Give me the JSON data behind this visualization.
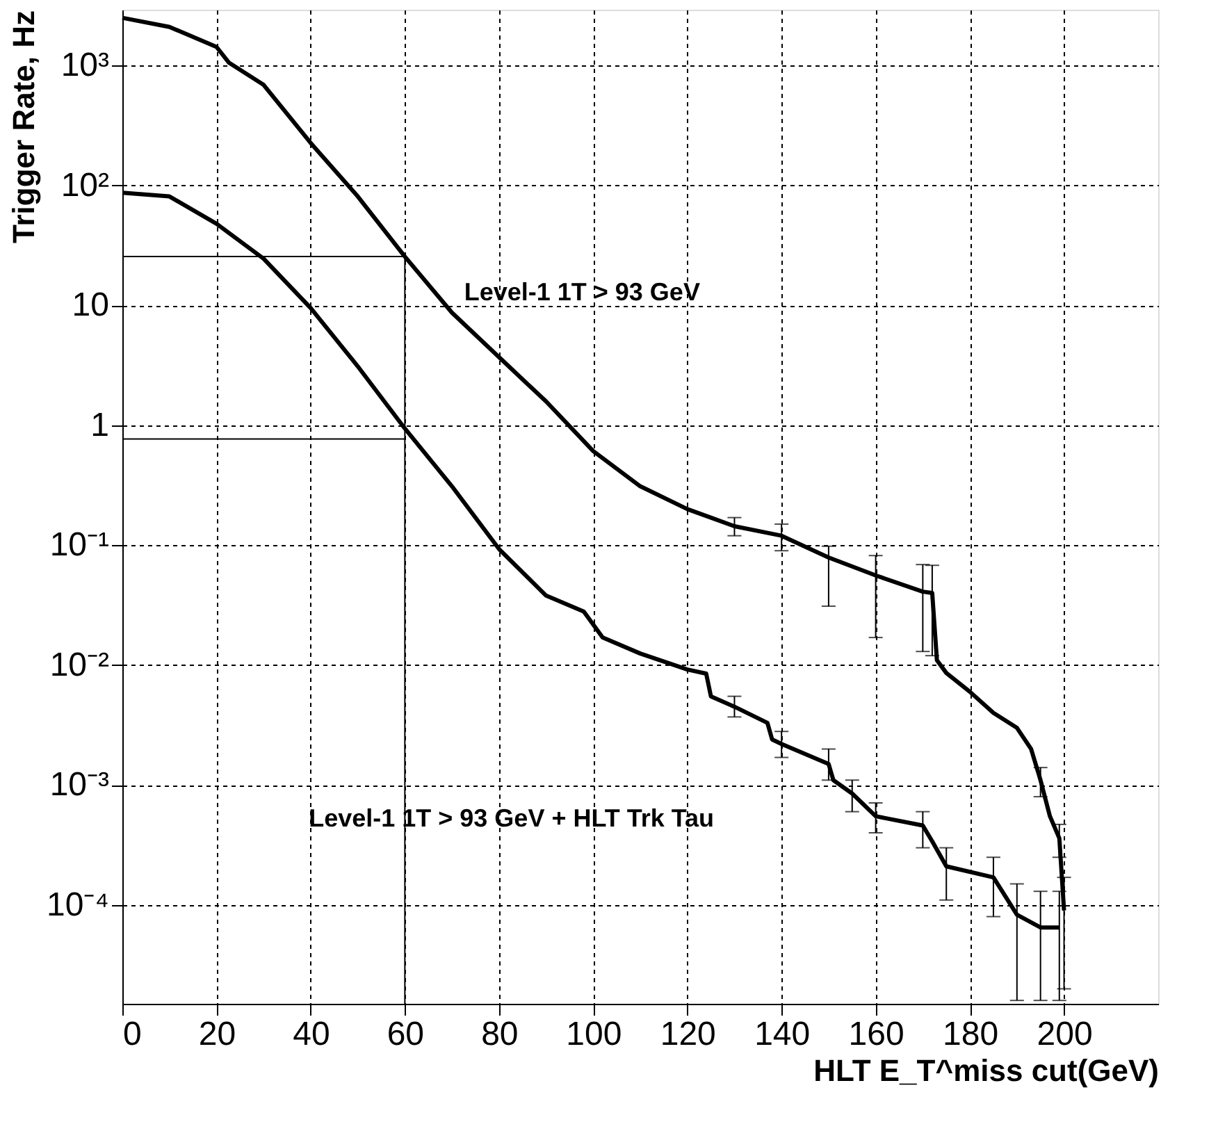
{
  "chart_data": {
    "type": "line",
    "xlabel": "HLT E_T^miss cut(GeV)",
    "ylabel": "Trigger Rate, Hz",
    "log": true,
    "grid": true,
    "marker": "none",
    "line_style": "solid",
    "xlim": [
      0,
      220
    ],
    "xticks": [
      0,
      20,
      40,
      60,
      80,
      100,
      120,
      140,
      160,
      180,
      200
    ],
    "ylim": [
      1.5e-05,
      2920
    ],
    "yticks": [
      {
        "value": 1000,
        "label": "10³"
      },
      {
        "value": 100,
        "label": "10²"
      },
      10,
      1,
      {
        "value": 0.1,
        "label": "10⁻¹"
      },
      {
        "value": 0.01,
        "label": "10⁻²"
      },
      {
        "value": 0.001,
        "label": "10⁻³"
      },
      {
        "value": 0.0001,
        "label": "10⁻⁴"
      }
    ],
    "series": [
      {
        "color": "#000000",
        "x": [
          0,
          10,
          20,
          22.6,
          30,
          40,
          50,
          60,
          70,
          80,
          90,
          100,
          110,
          120,
          130,
          140,
          150,
          160,
          170,
          172,
          173,
          175,
          180,
          185,
          190,
          193,
          195,
          197,
          199,
          200
        ],
        "values": [
          2500,
          2100,
          1430,
          1060,
          690,
          226,
          81,
          25.5,
          8.7,
          3.7,
          1.58,
          0.61,
          0.31,
          0.2,
          0.144,
          0.12,
          0.079,
          0.056,
          0.041,
          0.04,
          0.011,
          0.0086,
          0.006,
          0.004,
          0.003,
          0.002,
          0.0011,
          0.00055,
          0.00036,
          9e-05
        ],
        "errors": [
          null,
          null,
          null,
          null,
          null,
          null,
          null,
          null,
          null,
          null,
          null,
          null,
          null,
          null,
          [
            0.12,
            0.17
          ],
          [
            0.09,
            0.15
          ],
          [
            0.031,
            0.098
          ],
          [
            0.017,
            0.082
          ],
          [
            0.013,
            0.069
          ],
          [
            0.012,
            0.068
          ],
          null,
          null,
          null,
          null,
          null,
          null,
          [
            0.0008,
            0.0014
          ],
          null,
          [
            0.00025,
            0.00047
          ],
          [
            2e-05,
            0.00017
          ]
        ]
      },
      {
        "color": "#000000",
        "x": [
          0,
          10,
          20,
          30,
          40,
          50,
          60,
          70,
          80,
          90,
          98,
          102,
          110,
          120,
          124,
          125,
          130,
          137,
          138,
          140,
          150,
          151,
          155,
          160,
          170,
          172,
          175,
          185,
          190,
          195,
          199
        ],
        "values": [
          87,
          81,
          48,
          24.5,
          9.5,
          3.1,
          0.94,
          0.31,
          0.093,
          0.038,
          0.028,
          0.017,
          0.0125,
          0.0092,
          0.0085,
          0.0055,
          0.0045,
          0.0033,
          0.0024,
          0.0022,
          0.0015,
          0.0011,
          0.00085,
          0.00055,
          0.00046,
          0.00034,
          0.00021,
          0.00017,
          8.3e-05,
          6.5e-05,
          6.5e-05
        ],
        "errors": [
          null,
          null,
          null,
          null,
          null,
          null,
          null,
          null,
          null,
          null,
          null,
          null,
          null,
          null,
          null,
          null,
          [
            0.0037,
            0.0055
          ],
          null,
          null,
          [
            0.0017,
            0.0028
          ],
          [
            0.0011,
            0.002
          ],
          null,
          [
            0.0006,
            0.0011
          ],
          [
            0.0004,
            0.00071
          ],
          [
            0.0003,
            0.0006
          ],
          null,
          [
            0.00011,
            0.0003
          ],
          [
            8e-05,
            0.00025
          ],
          [
            1.6e-05,
            0.00015
          ],
          [
            1.6e-05,
            0.00013
          ],
          [
            1.6e-05,
            0.00013
          ]
        ]
      },
      {
        "type": "line",
        "color": "#000000",
        "x": [
          0,
          60,
          60
        ],
        "values": [
          25.6,
          25.6,
          1.5e-05
        ]
      },
      {
        "type": "line",
        "color": "#000000",
        "x": [
          0,
          60
        ],
        "values": [
          0.77,
          0.77
        ]
      }
    ],
    "annotations": [
      "Level-1 1T > 93 GeV",
      "Level-1 1T > 93 GeV + HLT Trk Tau"
    ]
  }
}
